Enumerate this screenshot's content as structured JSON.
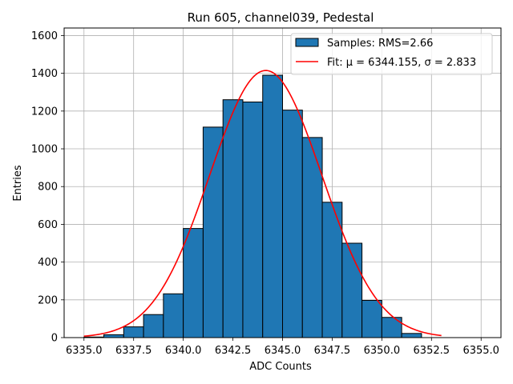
{
  "chart_data": {
    "type": "bar",
    "title": "Run 605, channel039, Pedestal",
    "xlabel": "ADC Counts",
    "ylabel": "Entries",
    "xlim": [
      6334.0,
      6356.0
    ],
    "ylim": [
      0,
      1640
    ],
    "xticks": [
      6335.0,
      6337.5,
      6340.0,
      6342.5,
      6345.0,
      6347.5,
      6350.0,
      6352.5,
      6355.0
    ],
    "xtick_labels": [
      "6335.0",
      "6337.5",
      "6340.0",
      "6342.5",
      "6345.0",
      "6347.5",
      "6350.0",
      "6352.5",
      "6355.0"
    ],
    "yticks": [
      0,
      200,
      400,
      600,
      800,
      1000,
      1200,
      1400,
      1600
    ],
    "ytick_labels": [
      "0",
      "200",
      "400",
      "600",
      "800",
      "1000",
      "1200",
      "1400",
      "1600"
    ],
    "grid": true,
    "bin_edges": [
      6335,
      6336,
      6337,
      6338,
      6339,
      6340,
      6341,
      6342,
      6343,
      6344,
      6345,
      6346,
      6347,
      6348,
      6349,
      6350,
      6351,
      6352,
      6353,
      6354,
      6355
    ],
    "counts": [
      3,
      15,
      57,
      122,
      232,
      578,
      1115,
      1260,
      1248,
      1390,
      1205,
      1060,
      717,
      500,
      197,
      107,
      22,
      0,
      0,
      0
    ],
    "bar_color": "#1f77b4",
    "fit": {
      "mu": 6344.155,
      "sigma": 2.833,
      "amplitude": 1415,
      "x_range": [
        6335.0,
        6353.0
      ],
      "color": "#ff0000"
    },
    "legend": {
      "placement": "upper-right",
      "entries": [
        {
          "label": "Samples: RMS=2.66",
          "kind": "patch",
          "color": "#1f77b4"
        },
        {
          "label": "Fit: μ = 6344.155, σ = 2.833",
          "kind": "line",
          "color": "#ff0000"
        }
      ]
    }
  }
}
